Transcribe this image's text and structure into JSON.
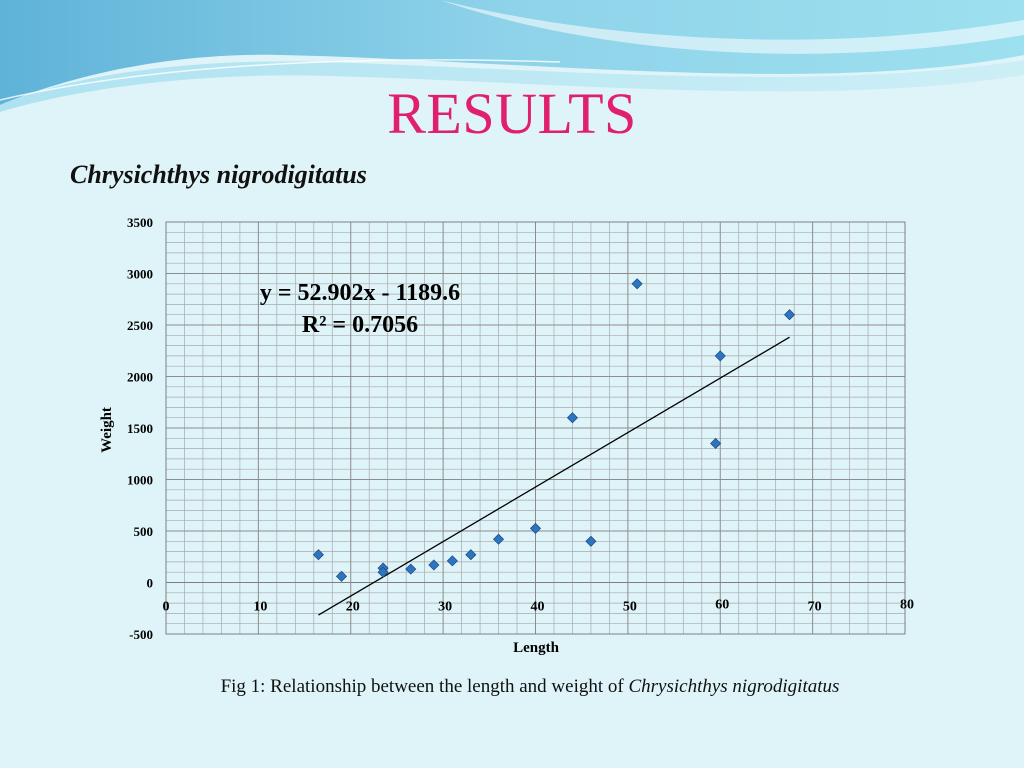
{
  "slide": {
    "title": "RESULTS",
    "subtitle": "Chrysichthys nigrodigitatus",
    "caption_text": "Fig 1: Relationship between the length and weight of ",
    "caption_species": "Chrysichthys nigrodigitatus",
    "title_color": "#e0206e"
  },
  "chart_data": {
    "type": "scatter",
    "xlabel": "Length",
    "ylabel": "Weight",
    "xlim": [
      0,
      80
    ],
    "ylim": [
      -500,
      3500
    ],
    "x_ticks": [
      "0",
      "10",
      "20",
      "30",
      "40",
      "50",
      "60",
      "70",
      "80"
    ],
    "y_ticks": [
      "3500",
      "3000",
      "2500",
      "2000",
      "1500",
      "1000",
      "500",
      "0",
      "-500"
    ],
    "grid": true,
    "point_color": "#2e75c0",
    "points": [
      {
        "x": 16.5,
        "y": 270
      },
      {
        "x": 19,
        "y": 60
      },
      {
        "x": 23.5,
        "y": 140
      },
      {
        "x": 23.5,
        "y": 100
      },
      {
        "x": 26.5,
        "y": 130
      },
      {
        "x": 29,
        "y": 170
      },
      {
        "x": 31,
        "y": 210
      },
      {
        "x": 33,
        "y": 270
      },
      {
        "x": 36,
        "y": 420
      },
      {
        "x": 40,
        "y": 525
      },
      {
        "x": 44,
        "y": 1600
      },
      {
        "x": 46,
        "y": 400
      },
      {
        "x": 51,
        "y": 2900
      },
      {
        "x": 59.5,
        "y": 1350
      },
      {
        "x": 60,
        "y": 2200
      },
      {
        "x": 67.5,
        "y": 2600
      }
    ],
    "trendline": {
      "slope": 52.902,
      "intercept": -1189.6,
      "x_start": 16.5,
      "x_end": 67.5
    },
    "equation": "y = 52.902x - 1189.6",
    "r_squared": "R² = 0.7056"
  }
}
